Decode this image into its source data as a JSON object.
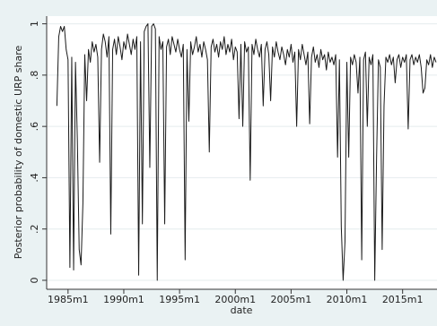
{
  "chart_data": {
    "type": "line",
    "x_label": "date",
    "y_label": "Posterior probability of domestic URP share",
    "x": [
      288,
      290,
      292,
      294,
      296,
      298,
      300,
      302,
      304,
      306,
      308,
      310,
      312,
      314,
      316,
      318,
      320,
      322,
      324,
      326,
      328,
      330,
      332,
      334,
      336,
      338,
      340,
      342,
      344,
      346,
      348,
      350,
      352,
      354,
      356,
      358,
      360,
      362,
      364,
      366,
      368,
      370,
      372,
      374,
      376,
      378,
      380,
      382,
      384,
      386,
      388,
      390,
      392,
      394,
      396,
      398,
      400,
      402,
      404,
      406,
      408,
      410,
      412,
      414,
      416,
      418,
      420,
      422,
      424,
      426,
      428,
      430,
      432,
      434,
      436,
      438,
      440,
      442,
      444,
      446,
      448,
      450,
      452,
      454,
      456,
      458,
      460,
      462,
      464,
      466,
      468,
      470,
      472,
      474,
      476,
      478,
      480,
      482,
      484,
      486,
      488,
      490,
      492,
      494,
      496,
      498,
      500,
      502,
      504,
      506,
      508,
      510,
      512,
      514,
      516,
      518,
      520,
      522,
      524,
      526,
      528,
      530,
      532,
      534,
      536,
      538,
      540,
      542,
      544,
      546,
      548,
      550,
      552,
      554,
      556,
      558,
      560,
      562,
      564,
      566,
      568,
      570,
      572,
      574,
      576,
      578,
      580,
      582,
      584,
      586,
      588,
      590,
      592,
      594,
      596,
      598,
      600,
      602,
      604,
      606,
      608,
      610,
      612,
      614,
      616,
      618,
      620,
      622,
      624,
      626,
      628,
      630,
      632,
      634,
      636,
      638,
      640,
      642,
      644,
      646,
      648,
      650,
      652,
      654,
      656,
      658,
      660,
      662,
      664,
      666,
      668,
      670,
      672,
      674,
      676,
      678,
      680,
      682,
      684,
      686,
      688,
      690,
      692,
      694,
      696
    ],
    "series": [
      {
        "color": "#1a1a1a",
        "values": [
          0.68,
          0.95,
          0.99,
          0.97,
          0.99,
          0.9,
          0.86,
          0.05,
          0.87,
          0.04,
          0.85,
          0.55,
          0.12,
          0.06,
          0.3,
          0.88,
          0.7,
          0.9,
          0.85,
          0.93,
          0.89,
          0.92,
          0.87,
          0.46,
          0.9,
          0.96,
          0.93,
          0.87,
          0.95,
          0.18,
          0.9,
          0.94,
          0.88,
          0.95,
          0.91,
          0.86,
          0.93,
          0.9,
          0.96,
          0.92,
          0.88,
          0.94,
          0.9,
          0.95,
          0.02,
          0.93,
          0.22,
          0.97,
          0.99,
          1.0,
          0.44,
          0.99,
          1.0,
          0.98,
          0.0,
          0.95,
          0.9,
          0.93,
          0.22,
          0.91,
          0.94,
          0.88,
          0.95,
          0.92,
          0.89,
          0.94,
          0.9,
          0.87,
          0.92,
          0.08,
          0.9,
          0.62,
          0.93,
          0.88,
          0.91,
          0.95,
          0.89,
          0.92,
          0.87,
          0.93,
          0.9,
          0.86,
          0.5,
          0.91,
          0.94,
          0.89,
          0.92,
          0.87,
          0.93,
          0.9,
          0.95,
          0.88,
          0.92,
          0.89,
          0.94,
          0.86,
          0.91,
          0.89,
          0.63,
          0.92,
          0.6,
          0.93,
          0.89,
          0.91,
          0.39,
          0.92,
          0.88,
          0.94,
          0.9,
          0.87,
          0.92,
          0.68,
          0.9,
          0.93,
          0.88,
          0.7,
          0.91,
          0.87,
          0.93,
          0.89,
          0.86,
          0.91,
          0.88,
          0.84,
          0.9,
          0.87,
          0.92,
          0.85,
          0.89,
          0.6,
          0.9,
          0.86,
          0.92,
          0.88,
          0.84,
          0.89,
          0.61,
          0.87,
          0.91,
          0.85,
          0.88,
          0.83,
          0.9,
          0.86,
          0.88,
          0.82,
          0.89,
          0.85,
          0.87,
          0.84,
          0.88,
          0.48,
          0.86,
          0.21,
          0.0,
          0.15,
          0.85,
          0.48,
          0.87,
          0.84,
          0.88,
          0.85,
          0.73,
          0.87,
          0.08,
          0.86,
          0.89,
          0.6,
          0.87,
          0.84,
          0.88,
          0.0,
          0.48,
          0.86,
          0.83,
          0.12,
          0.68,
          0.87,
          0.85,
          0.88,
          0.84,
          0.87,
          0.77,
          0.86,
          0.88,
          0.83,
          0.87,
          0.85,
          0.88,
          0.59,
          0.86,
          0.88,
          0.84,
          0.87,
          0.85,
          0.88,
          0.83,
          0.73,
          0.75,
          0.86,
          0.84,
          0.88,
          0.83,
          0.87,
          0.85
        ]
      }
    ],
    "xlim": [
      277,
      697
    ],
    "ylim": [
      -0.035,
      1.03
    ],
    "xticks": [
      {
        "value": 300,
        "label": "1985m1"
      },
      {
        "value": 360,
        "label": "1990m1"
      },
      {
        "value": 420,
        "label": "1995m1"
      },
      {
        "value": 480,
        "label": "2000m1"
      },
      {
        "value": 540,
        "label": "2005m1"
      },
      {
        "value": 600,
        "label": "2010m1"
      },
      {
        "value": 660,
        "label": "2015m1"
      }
    ],
    "yticks": [
      0,
      {
        "value": 0.2,
        "label": ".2"
      },
      {
        "value": 0.4,
        "label": ".4"
      },
      {
        "value": 0.6,
        "label": ".6"
      },
      {
        "value": 0.8,
        "label": ".8"
      },
      1
    ],
    "grid": true
  }
}
